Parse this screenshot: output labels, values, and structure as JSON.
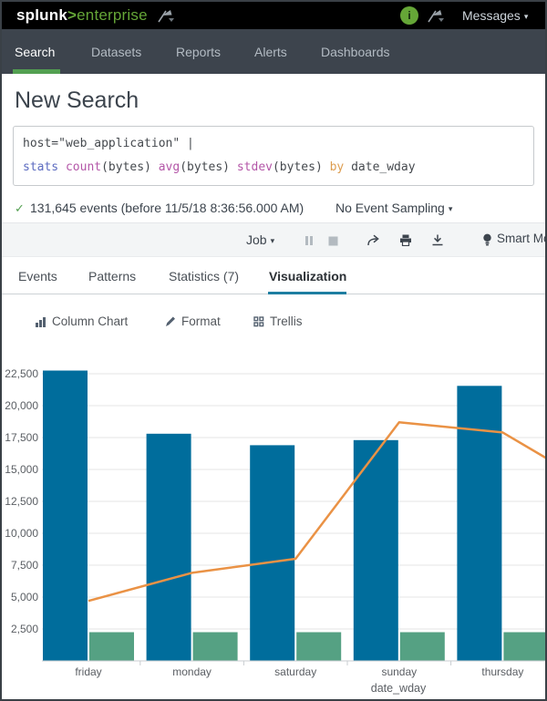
{
  "glyphs": {
    "caret": "▾",
    "check": "✓"
  },
  "topbar": {
    "logo_main": "splunk",
    "logo_gt": ">",
    "logo_sub": "enterprise",
    "messages_label": "Messages"
  },
  "navbar": {
    "items": [
      {
        "label": "Search",
        "active": true
      },
      {
        "label": "Datasets",
        "active": false
      },
      {
        "label": "Reports",
        "active": false
      },
      {
        "label": "Alerts",
        "active": false
      },
      {
        "label": "Dashboards",
        "active": false
      }
    ]
  },
  "search": {
    "title": "New Search",
    "query_line1": [
      "host=\"web_application\" |"
    ],
    "query_line2": [
      "stats ",
      "count",
      "(bytes) ",
      "avg",
      "(bytes) ",
      "stdev",
      "(bytes) ",
      "by ",
      "date_wday"
    ]
  },
  "status": {
    "events_text": "131,645 events (before 11/5/18 8:36:56.000 AM)",
    "sampling_label": "No Event Sampling"
  },
  "toolbar": {
    "job_label": "Job",
    "smart_mode_label": "Smart Mode"
  },
  "results_tabs": [
    {
      "label": "Events",
      "active": false
    },
    {
      "label": "Patterns",
      "active": false
    },
    {
      "label": "Statistics (7)",
      "active": false
    },
    {
      "label": "Visualization",
      "active": true
    }
  ],
  "viz_controls": {
    "chart_type_label": "Column Chart",
    "format_label": "Format",
    "trellis_label": "Trellis"
  },
  "chart_data": {
    "type": "bar",
    "subtype": "grouped columns with line overlay, clipped at right edge",
    "categories": [
      "friday",
      "monday",
      "saturday",
      "sunday",
      "thursday"
    ],
    "series": [
      {
        "name": "count(bytes)",
        "render": "column",
        "color": "#006d9c",
        "values": [
          22750,
          17800,
          16900,
          17300,
          21550
        ]
      },
      {
        "name": "avg(bytes)",
        "render": "column",
        "color": "#55a183",
        "values": [
          2250,
          2250,
          2250,
          2250,
          2250
        ]
      },
      {
        "name": "stdev(bytes)",
        "render": "line",
        "color": "#ea9245",
        "values": [
          4700,
          6900,
          8000,
          18700,
          17900
        ],
        "offscreen_next_value": 15600
      }
    ],
    "title": "",
    "xlabel": "date_wday",
    "ylabel": "",
    "y_ticks": [
      2500,
      5000,
      7500,
      10000,
      12500,
      15000,
      17500,
      20000,
      22500
    ],
    "ylim": [
      0,
      24000
    ],
    "grid": true,
    "legend": "none visible (clipped)"
  },
  "colors": {
    "topbar_bg": "#000000",
    "navbar_bg": "#3d444d",
    "accent_green": "#65a637",
    "active_nav_green": "#53a051",
    "check_green": "#53a051",
    "tab_underline": "#1e7ea1",
    "bar_blue": "#006d9c",
    "bar_green": "#55a183",
    "line_orange": "#ea9245"
  }
}
